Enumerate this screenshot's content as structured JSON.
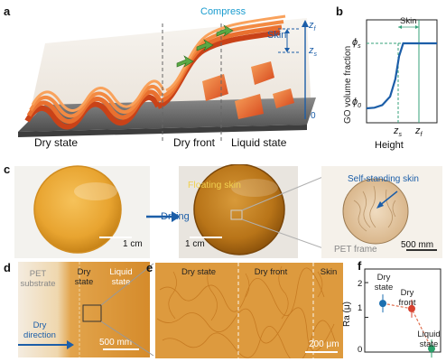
{
  "panel_a": {
    "label": "a",
    "compress": "Compress",
    "skin": "Skin",
    "zf": "z",
    "zf_sub": "f",
    "zs": "z",
    "zs_sub": "s",
    "zero": "0",
    "dry_state": "Dry state",
    "dry_front": "Dry front",
    "liquid_state": "Liquid state"
  },
  "panel_b": {
    "label": "b",
    "skin": "Skin",
    "ylabel": "GO volume fraction",
    "xlabel": "Height",
    "phi_s": "ϕ",
    "phi_s_sub": "s",
    "phi_0": "ϕ",
    "phi_0_sub": "0",
    "x_zs": "z",
    "x_zs_sub": "s",
    "x_zf": "z",
    "x_zf_sub": "f"
  },
  "chart_data": {
    "type": "line",
    "title": "",
    "xlabel": "Height",
    "ylabel": "GO volume fraction",
    "x_ticks": [
      "zs",
      "zf"
    ],
    "y_ticks": [
      "ϕ0",
      "ϕs"
    ],
    "series": [
      {
        "x": [
          0.0,
          0.15,
          0.3,
          0.45,
          0.55,
          0.62,
          0.7,
          1.0
        ],
        "y": [
          0.0,
          0.01,
          0.05,
          0.18,
          0.45,
          0.8,
          1.0,
          1.0
        ]
      }
    ],
    "annotation": "Skin"
  },
  "panel_c": {
    "label": "c",
    "drying": "Drying",
    "floating_skin": "Floating skin",
    "self_standing_skin": "Self-standing skin",
    "pet_frame": "PET frame",
    "scale_1": "1 cm",
    "scale_2": "1 cm",
    "scale_3": "500 mm"
  },
  "panel_d": {
    "label": "d",
    "pet_substrate": "PET substrate",
    "dry_state": "Dry state",
    "liquid_state": "Liquid state",
    "dry_direction": "Dry direction",
    "scale": "500 mm"
  },
  "panel_e": {
    "label": "e",
    "dry_state": "Dry state",
    "dry_front": "Dry front",
    "skin": "Skin",
    "scale": "200 μm"
  },
  "panel_f": {
    "label": "f",
    "ylabel": "Ra (μ)",
    "yticks": [
      "2",
      "1",
      "0"
    ],
    "points": [
      {
        "label": "Dry state",
        "value": 1.4,
        "color": "#1c6fb0"
      },
      {
        "label": "Dry front",
        "value": 1.25,
        "color": "#d8412f"
      },
      {
        "label": "Liquid state",
        "value": 0.1,
        "color": "#2aa06a"
      }
    ]
  }
}
